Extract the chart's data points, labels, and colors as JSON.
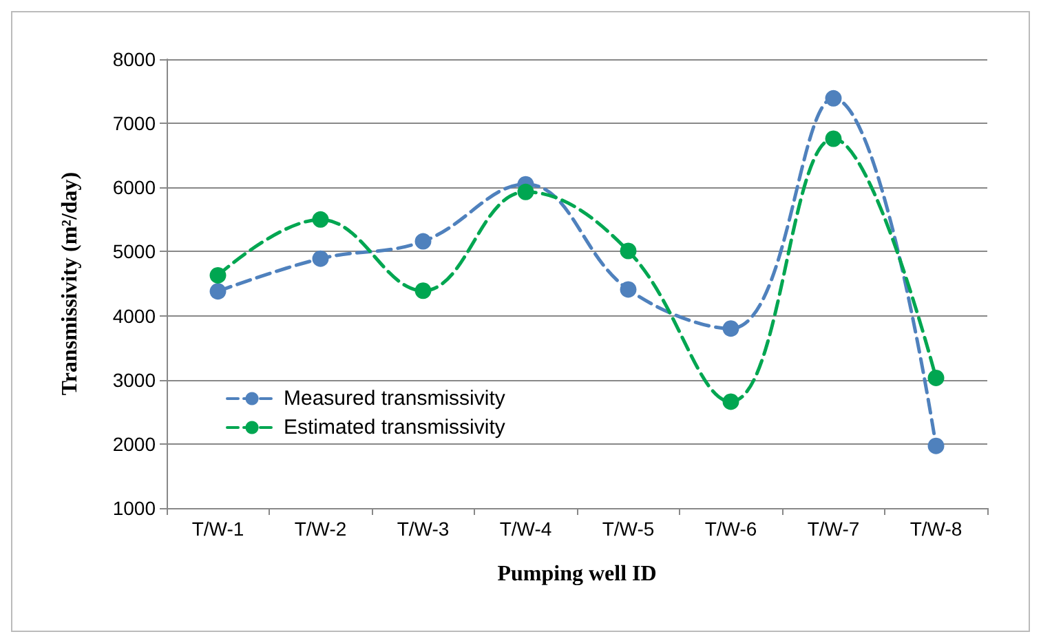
{
  "chart_data": {
    "type": "line",
    "xlabel": "Pumping well ID",
    "ylabel": "Transmissivity (m²/day)",
    "categories": [
      "T/W-1",
      "T/W-2",
      "T/W-3",
      "T/W-4",
      "T/W-5",
      "T/W-6",
      "T/W-7",
      "T/W-8"
    ],
    "series": [
      {
        "name": "Measured transmissivity",
        "color": "#4f81bd",
        "values": [
          4380,
          4890,
          5160,
          6050,
          4410,
          3800,
          7390,
          1970
        ]
      },
      {
        "name": "Estimated transmissivity",
        "color": "#00a651",
        "values": [
          4630,
          5500,
          4390,
          5930,
          5010,
          2660,
          6760,
          3030
        ]
      }
    ],
    "ylim": [
      1000,
      8000
    ],
    "yticks": [
      1000,
      2000,
      3000,
      4000,
      5000,
      6000,
      7000,
      8000
    ],
    "grid": "y",
    "legend": "left",
    "marker": "circle",
    "line_style": "dashed"
  }
}
